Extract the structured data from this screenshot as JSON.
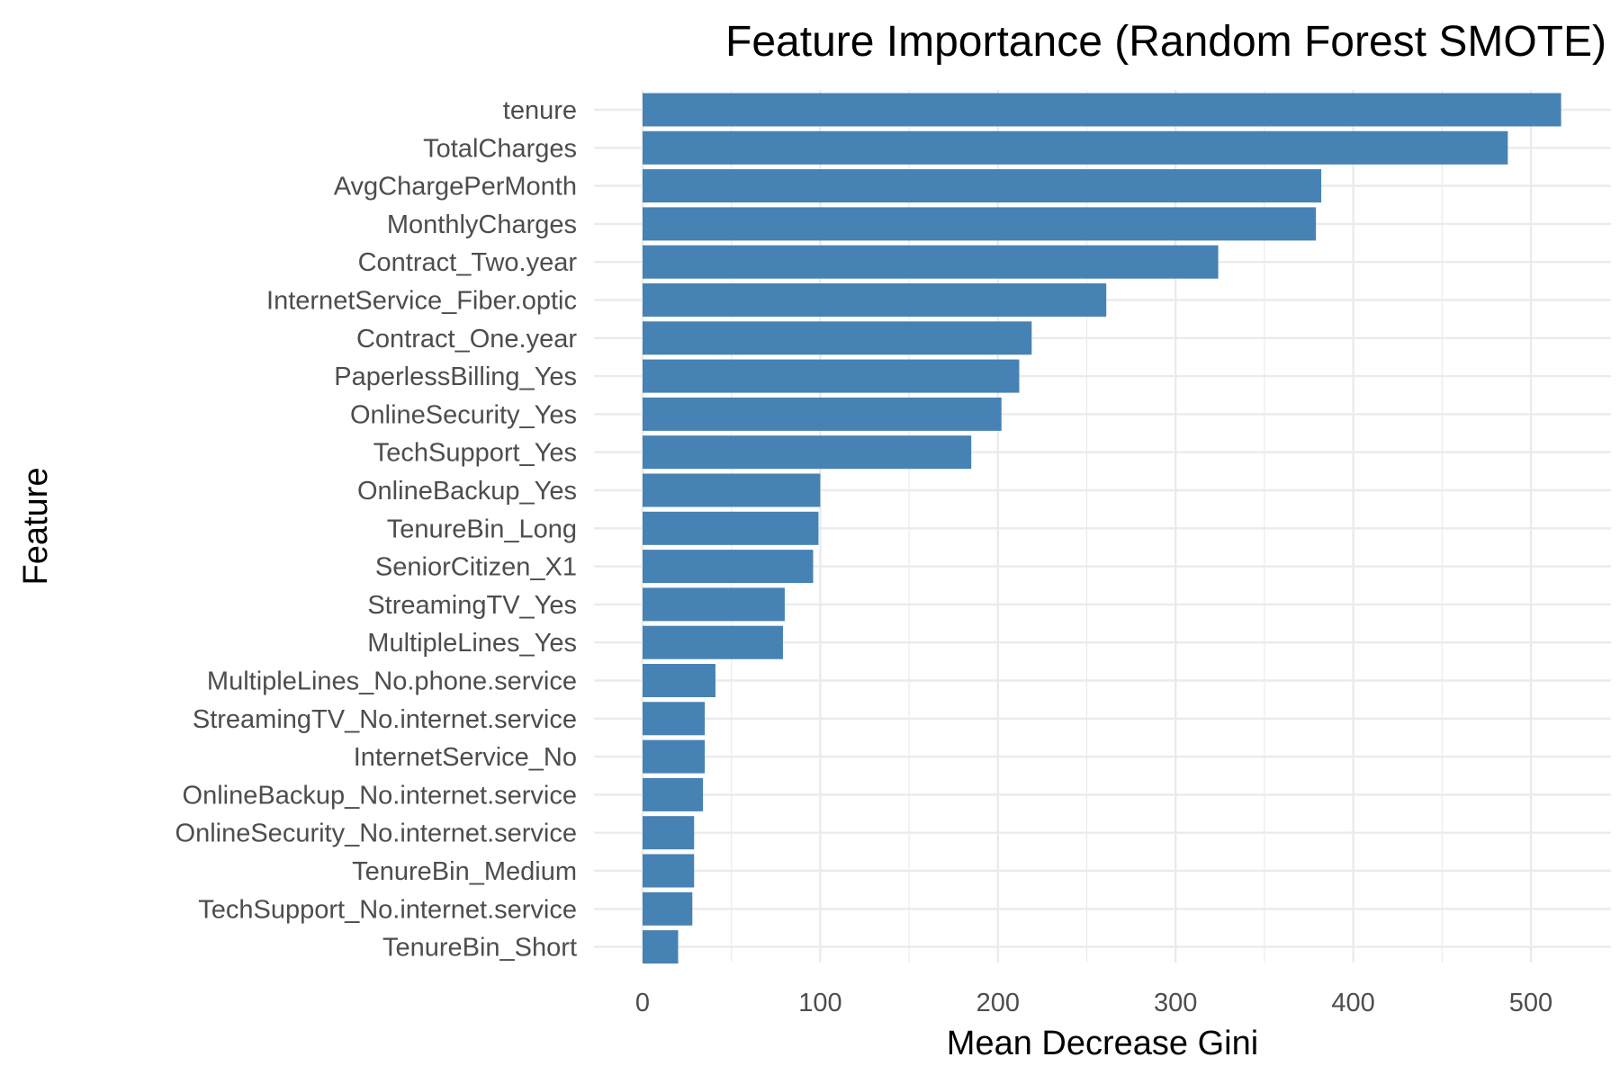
{
  "chart_data": {
    "type": "bar",
    "orientation": "horizontal",
    "title": "Feature Importance (Random Forest SMOTE)",
    "xlabel": "Mean Decrease Gini",
    "ylabel": "Feature",
    "xlim": [
      -25,
      540
    ],
    "x_ticks": [
      0,
      100,
      200,
      300,
      400,
      500
    ],
    "x_tick_labels": [
      "0",
      "100",
      "200",
      "300",
      "400",
      "500"
    ],
    "grid": true,
    "legend": "none",
    "bar_color": "#4682B4",
    "grid_color": "#EBEBEB",
    "categories": [
      "tenure",
      "TotalCharges",
      "AvgChargePerMonth",
      "MonthlyCharges",
      "Contract_Two.year",
      "InternetService_Fiber.optic",
      "Contract_One.year",
      "PaperlessBilling_Yes",
      "OnlineSecurity_Yes",
      "TechSupport_Yes",
      "OnlineBackup_Yes",
      "TenureBin_Long",
      "SeniorCitizen_X1",
      "StreamingTV_Yes",
      "MultipleLines_Yes",
      "MultipleLines_No.phone.service",
      "StreamingTV_No.internet.service",
      "InternetService_No",
      "OnlineBackup_No.internet.service",
      "OnlineSecurity_No.internet.service",
      "TenureBin_Medium",
      "TechSupport_No.internet.service",
      "TenureBin_Short"
    ],
    "values": [
      517,
      487,
      382,
      379,
      324,
      261,
      219,
      212,
      202,
      185,
      100,
      99,
      96,
      80,
      79,
      41,
      35,
      35,
      34,
      29,
      29,
      28,
      20
    ]
  }
}
